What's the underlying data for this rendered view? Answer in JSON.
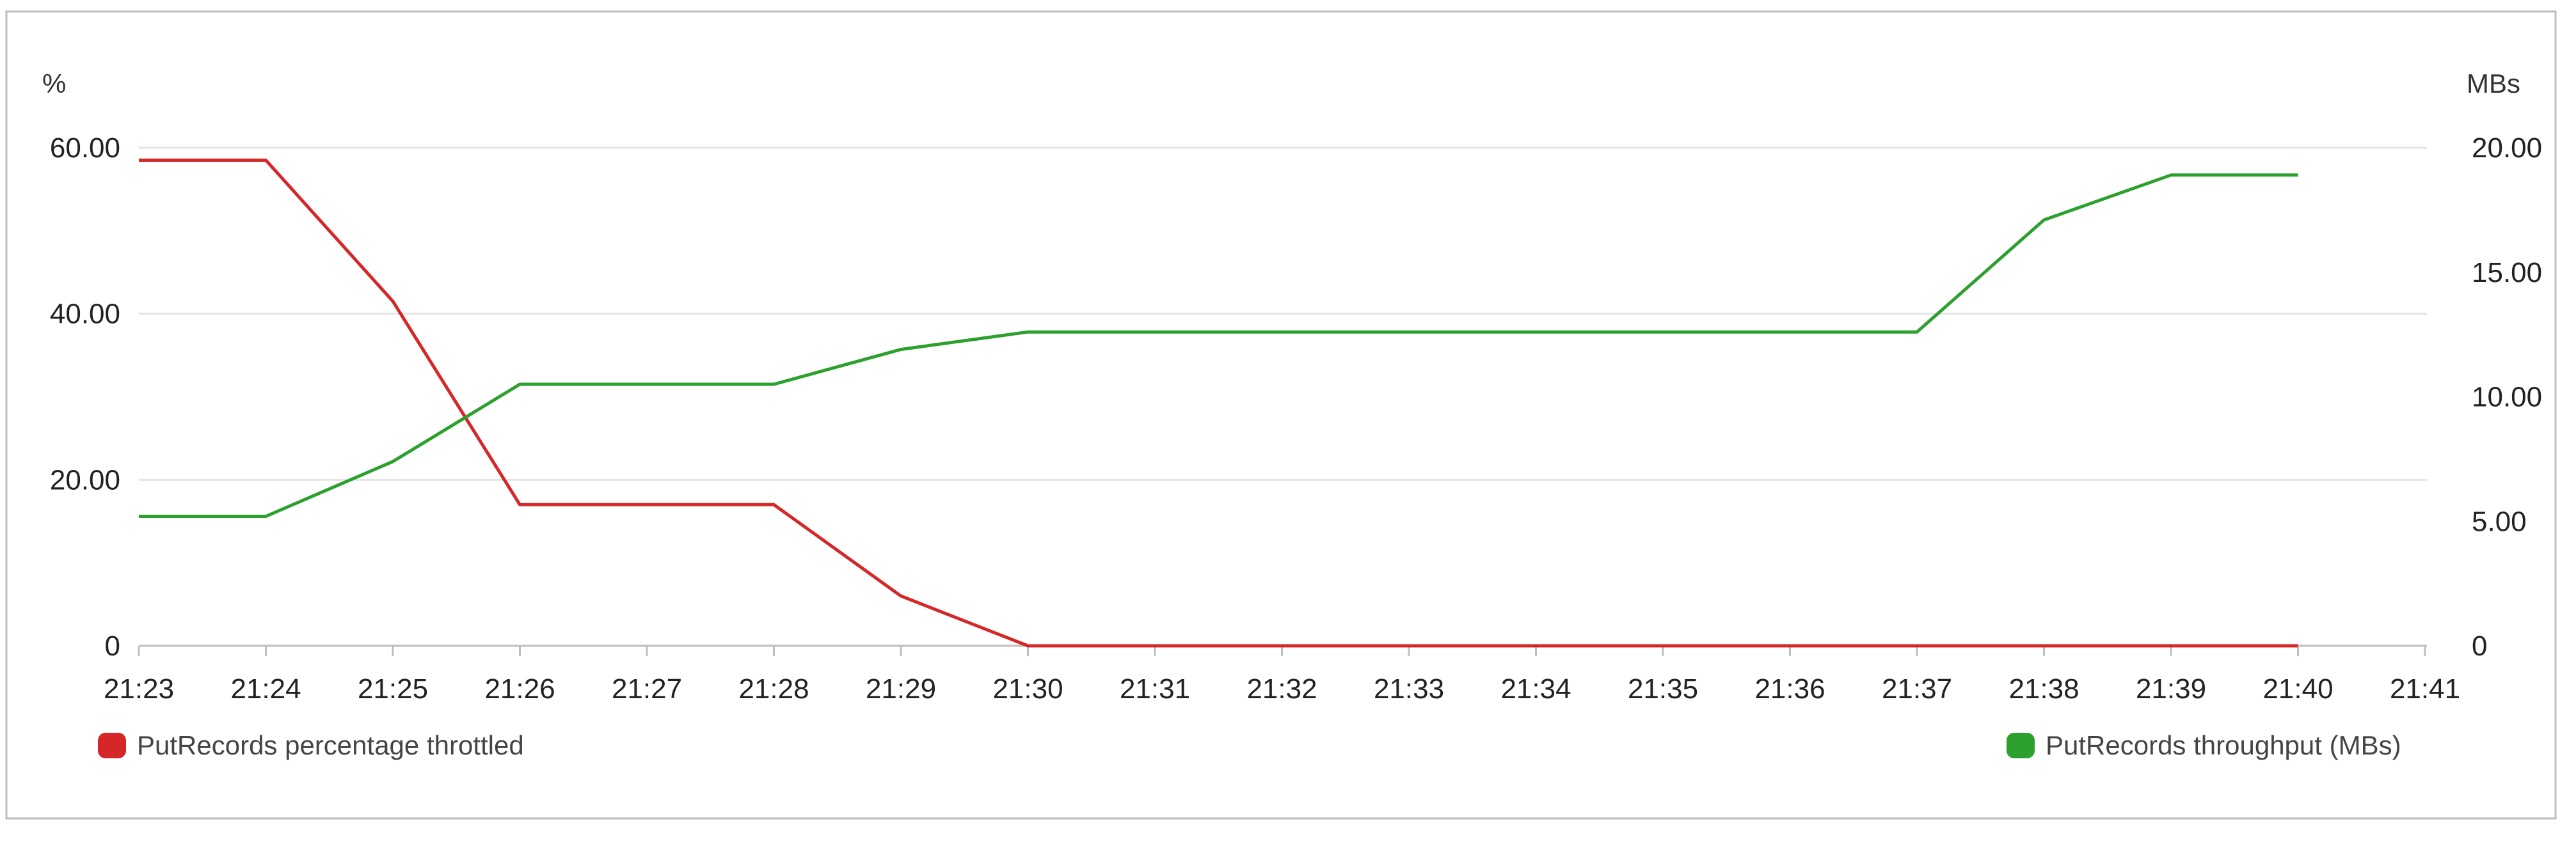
{
  "chart_data": {
    "type": "line",
    "title": "",
    "x": [
      "21:23",
      "21:24",
      "21:25",
      "21:26",
      "21:27",
      "21:28",
      "21:29",
      "21:30",
      "21:31",
      "21:32",
      "21:33",
      "21:34",
      "21:35",
      "21:36",
      "21:37",
      "21:38",
      "21:39",
      "21:40"
    ],
    "x_ticks": [
      "21:23",
      "21:24",
      "21:25",
      "21:26",
      "21:27",
      "21:28",
      "21:29",
      "21:30",
      "21:31",
      "21:32",
      "21:33",
      "21:34",
      "21:35",
      "21:36",
      "21:37",
      "21:38",
      "21:39",
      "21:40",
      "21:41"
    ],
    "y_left": {
      "label": "%",
      "range": [
        0,
        60
      ],
      "ticks": [
        "0",
        "20.00",
        "40.00",
        "60.00"
      ]
    },
    "y_right": {
      "label": "MBs",
      "range": [
        0,
        20
      ],
      "ticks": [
        "0",
        "5.00",
        "10.00",
        "15.00",
        "20.00"
      ]
    },
    "grid": true,
    "series": [
      {
        "name": "PutRecords percentage throttled",
        "axis": "left",
        "color": "#d62728",
        "values": [
          58.5,
          58.5,
          41.5,
          17,
          17,
          17,
          6,
          0,
          0,
          0,
          0,
          0,
          0,
          0,
          0,
          0,
          0,
          0
        ]
      },
      {
        "name": "PutRecords throughput (MBs)",
        "axis": "right",
        "color": "#2ca02c",
        "values": [
          5.2,
          5.2,
          7.4,
          10.5,
          10.5,
          10.5,
          11.9,
          12.6,
          12.6,
          12.6,
          12.6,
          12.6,
          12.6,
          12.6,
          12.6,
          17.1,
          18.9,
          18.9
        ]
      }
    ],
    "legend": {
      "left": "PutRecords percentage throttled",
      "right": "PutRecords throughput (MBs)"
    }
  }
}
